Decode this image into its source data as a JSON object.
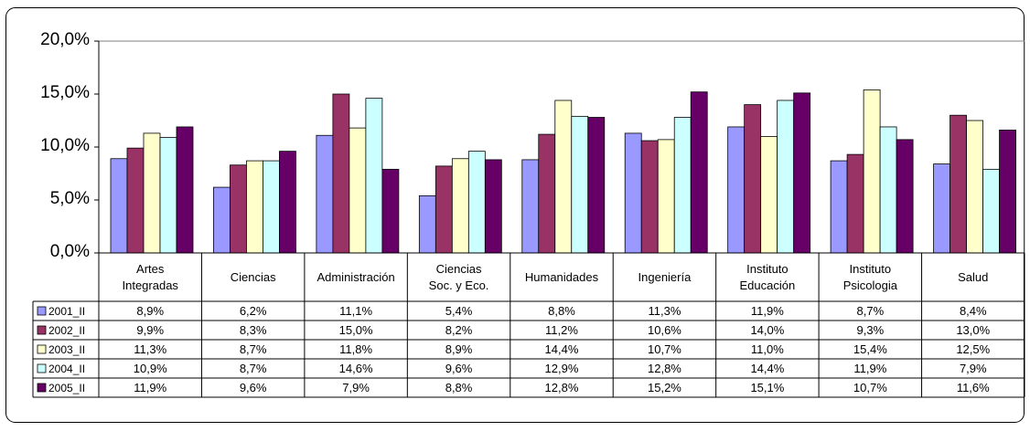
{
  "chart_data": {
    "type": "bar",
    "categories": [
      "Artes\nIntegradas",
      "Ciencias",
      "Administración",
      "Ciencias\nSoc. y Eco.",
      "Humanidades",
      "Ingeniería",
      "Instituto\nEducación",
      "Instituto\nPsicologia",
      "Salud"
    ],
    "series": [
      {
        "name": "2001_II",
        "color": "#9999ff",
        "values": [
          8.9,
          6.2,
          11.1,
          5.4,
          8.8,
          11.3,
          11.9,
          8.7,
          8.4
        ],
        "value_labels": [
          "8,9%",
          "6,2%",
          "11,1%",
          "5,4%",
          "8,8%",
          "11,3%",
          "11,9%",
          "8,7%",
          "8,4%"
        ]
      },
      {
        "name": "2002_II",
        "color": "#993366",
        "values": [
          9.9,
          8.3,
          15.0,
          8.2,
          11.2,
          10.6,
          14.0,
          9.3,
          13.0
        ],
        "value_labels": [
          "9,9%",
          "8,3%",
          "15,0%",
          "8,2%",
          "11,2%",
          "10,6%",
          "14,0%",
          "9,3%",
          "13,0%"
        ]
      },
      {
        "name": "2003_II",
        "color": "#ffffcc",
        "values": [
          11.3,
          8.7,
          11.8,
          8.9,
          14.4,
          10.7,
          11.0,
          15.4,
          12.5
        ],
        "value_labels": [
          "11,3%",
          "8,7%",
          "11,8%",
          "8,9%",
          "14,4%",
          "10,7%",
          "11,0%",
          "15,4%",
          "12,5%"
        ]
      },
      {
        "name": "2004_II",
        "color": "#ccffff",
        "values": [
          10.9,
          8.7,
          14.6,
          9.6,
          12.9,
          12.8,
          14.4,
          11.9,
          7.9
        ],
        "value_labels": [
          "10,9%",
          "8,7%",
          "14,6%",
          "9,6%",
          "12,9%",
          "12,8%",
          "14,4%",
          "11,9%",
          "7,9%"
        ]
      },
      {
        "name": "2005_II",
        "color": "#660066",
        "values": [
          11.9,
          9.6,
          7.9,
          8.8,
          12.8,
          15.2,
          15.1,
          10.7,
          11.6
        ],
        "value_labels": [
          "11,9%",
          "9,6%",
          "7,9%",
          "8,8%",
          "12,8%",
          "15,2%",
          "15,1%",
          "10,7%",
          "11,6%"
        ]
      }
    ],
    "ylim": [
      0,
      20
    ],
    "yticks": [
      {
        "value": 0,
        "label": "0,0%"
      },
      {
        "value": 5,
        "label": "5,0%"
      },
      {
        "value": 10,
        "label": "10,0%"
      },
      {
        "value": 15,
        "label": "15,0%"
      },
      {
        "value": 20,
        "label": "20,0%"
      }
    ]
  }
}
